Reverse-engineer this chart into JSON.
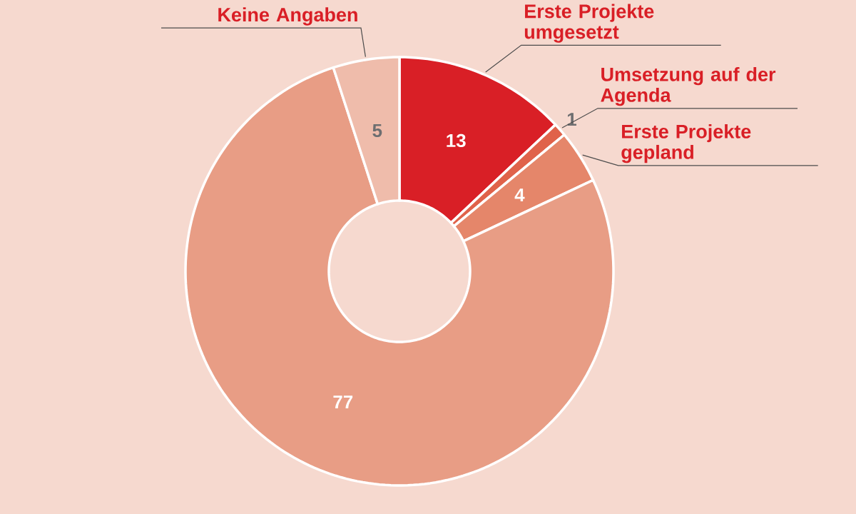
{
  "chart_data": {
    "type": "donut",
    "categories": [
      "Erste Projekte umgesetzt",
      "Umsetzung auf der Agenda",
      "Erste Projekte gepland",
      null,
      "Keine Angaben"
    ],
    "values": [
      13,
      1,
      4,
      77,
      5
    ],
    "colors": [
      "#d91f26",
      "#e0624a",
      "#e5866a",
      "#e89d85",
      "#efbcab"
    ],
    "data_labels": true
  }
}
